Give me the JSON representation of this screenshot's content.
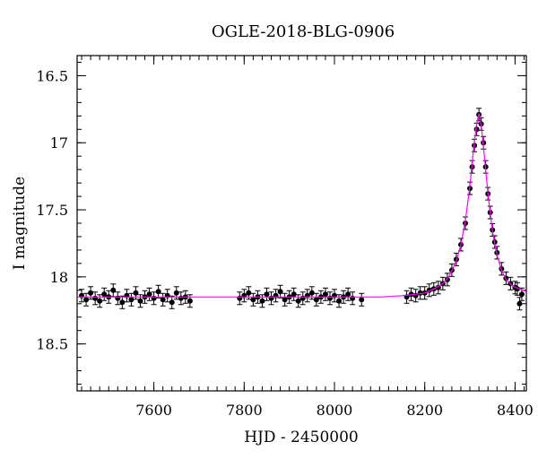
{
  "chart_data": {
    "type": "scatter",
    "title": "OGLE-2018-BLG-0906",
    "xlabel": "HJD - 2450000",
    "ylabel": "I magnitude",
    "xlim": [
      7430,
      8425
    ],
    "ylim": [
      18.85,
      16.35
    ],
    "y_inverted": true,
    "xticks": [
      7600,
      7800,
      8000,
      8200,
      8400
    ],
    "yticks": [
      16.5,
      17,
      17.5,
      18,
      18.5
    ],
    "xtick_labels": [
      "7600",
      "7800",
      "8000",
      "8200",
      "8400"
    ],
    "ytick_labels": [
      "16.5",
      "17",
      "17.5",
      "18",
      "18.5"
    ],
    "grid": false,
    "colors": {
      "points": "#000000",
      "model": "#ff00ff"
    },
    "model": {
      "name": "",
      "x": [
        7430,
        8100,
        8150,
        8180,
        8200,
        8220,
        8240,
        8255,
        8270,
        8280,
        8290,
        8300,
        8308,
        8314,
        8320,
        8326,
        8332,
        8340,
        8350,
        8360,
        8370,
        8380,
        8395,
        8410,
        8425
      ],
      "y": [
        18.15,
        18.15,
        18.14,
        18.13,
        18.12,
        18.09,
        18.05,
        17.99,
        17.88,
        17.76,
        17.58,
        17.32,
        17.05,
        16.88,
        16.78,
        16.9,
        17.1,
        17.38,
        17.66,
        17.84,
        17.95,
        18.02,
        18.07,
        18.09,
        18.11
      ]
    },
    "series": [
      {
        "name": "",
        "x": [
          7440,
          7450,
          7460,
          7470,
          7480,
          7490,
          7500,
          7510,
          7520,
          7530,
          7540,
          7550,
          7560,
          7570,
          7580,
          7590,
          7600,
          7610,
          7620,
          7630,
          7640,
          7650,
          7660,
          7670,
          7680,
          7790,
          7800,
          7810,
          7820,
          7830,
          7840,
          7850,
          7860,
          7870,
          7880,
          7890,
          7900,
          7910,
          7920,
          7930,
          7940,
          7950,
          7960,
          7970,
          7980,
          7990,
          8000,
          8010,
          8020,
          8030,
          8040,
          8060,
          8160,
          8170,
          8180,
          8190,
          8200,
          8210,
          8220,
          8230,
          8240,
          8250,
          8260,
          8270,
          8280,
          8290,
          8300,
          8305,
          8310,
          8315,
          8320,
          8325,
          8330,
          8335,
          8340,
          8345,
          8350,
          8355,
          8360,
          8370,
          8380,
          8390,
          8400,
          8405,
          8410,
          8415
        ],
        "y": [
          18.14,
          18.17,
          18.12,
          18.16,
          18.18,
          18.13,
          18.15,
          18.1,
          18.16,
          18.19,
          18.14,
          18.17,
          18.12,
          18.18,
          18.15,
          18.13,
          18.16,
          18.11,
          18.17,
          18.14,
          18.19,
          18.12,
          18.16,
          18.15,
          18.18,
          18.16,
          18.14,
          18.12,
          18.17,
          18.15,
          18.18,
          18.13,
          18.16,
          18.14,
          18.11,
          18.17,
          18.15,
          18.13,
          18.18,
          18.16,
          18.14,
          18.12,
          18.17,
          18.15,
          18.13,
          18.16,
          18.14,
          18.18,
          18.15,
          18.13,
          18.16,
          18.17,
          18.15,
          18.13,
          18.14,
          18.12,
          18.12,
          18.1,
          18.09,
          18.08,
          18.05,
          18.02,
          17.95,
          17.87,
          17.76,
          17.6,
          17.34,
          17.18,
          17.02,
          16.9,
          16.79,
          16.86,
          17.0,
          17.18,
          17.38,
          17.52,
          17.65,
          17.74,
          17.82,
          17.94,
          18.01,
          18.05,
          18.08,
          18.09,
          18.2,
          18.13
        ]
      }
    ]
  }
}
